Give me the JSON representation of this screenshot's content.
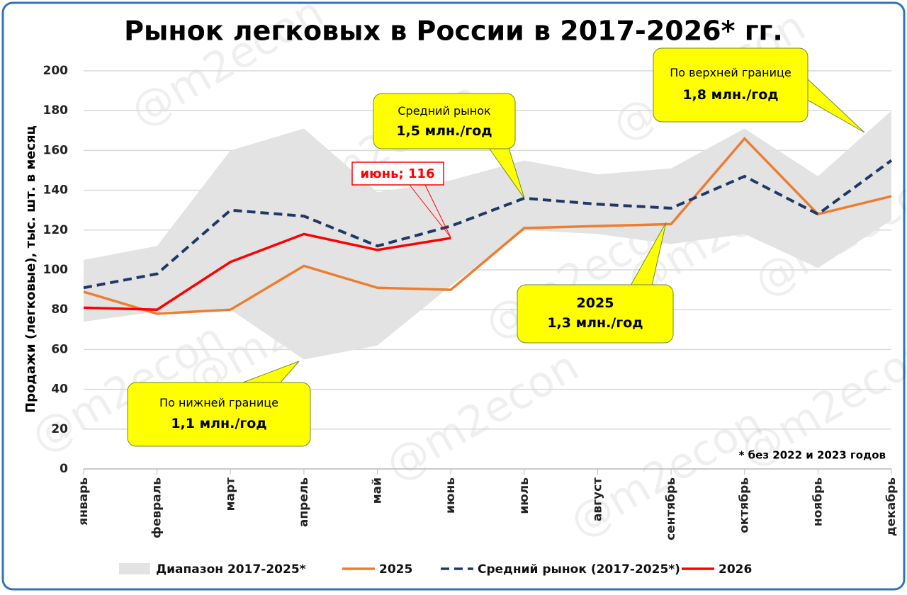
{
  "chart_data": {
    "type": "line",
    "title": "Рынок легковых в России в 2017-2026* гг.",
    "y_label": "Продажи (легковые), тыс. шт. в месяц",
    "categories": [
      "январь",
      "февраль",
      "март",
      "апрель",
      "май",
      "июнь",
      "июль",
      "август",
      "сентябрь",
      "октябрь",
      "ноябрь",
      "декабрь"
    ],
    "ylim": [
      0,
      200
    ],
    "yticks": [
      0,
      20,
      40,
      60,
      80,
      100,
      120,
      140,
      160,
      180,
      200
    ],
    "grid": true,
    "series": [
      {
        "name": "Диапазон 2017-2025*",
        "type": "range",
        "color": "#e3e3e3",
        "values": [
          105,
          112,
          160,
          171,
          139,
          145,
          155,
          148,
          151,
          171,
          147,
          180
        ],
        "low": [
          74,
          79,
          80,
          55,
          62,
          92,
          120,
          118,
          113,
          118,
          101,
          125
        ]
      },
      {
        "name": "2025",
        "type": "line",
        "color": "#ed7d31",
        "dash": false,
        "values": [
          89,
          78,
          80,
          102,
          91,
          90,
          121,
          122,
          123,
          166,
          128,
          137
        ]
      },
      {
        "name": "Средний рынок (2017-2025*)",
        "type": "line",
        "color": "#1f3864",
        "dash": true,
        "values": [
          91,
          98,
          130,
          127,
          112,
          122,
          136,
          133,
          131,
          147,
          128,
          155
        ]
      },
      {
        "name": "2026",
        "type": "line",
        "color": "#ff0000",
        "dash": false,
        "values": [
          81,
          80,
          104,
          118,
          110,
          116,
          null,
          null,
          null,
          null,
          null,
          null
        ]
      }
    ],
    "annotations": [
      {
        "lines": [
          "Средний рынок",
          "1,5 млн./год"
        ]
      },
      {
        "lines": [
          "По верхней границе",
          "1,8 млн./год"
        ]
      },
      {
        "lines": [
          "2025",
          "1,3 млн./год"
        ]
      },
      {
        "lines": [
          "По нижней границе",
          "1,1 млн./год"
        ]
      },
      {
        "text": "июнь;  116"
      }
    ],
    "footnote": "* без 2022 и 2023 годов",
    "watermark": "@m2econ"
  }
}
